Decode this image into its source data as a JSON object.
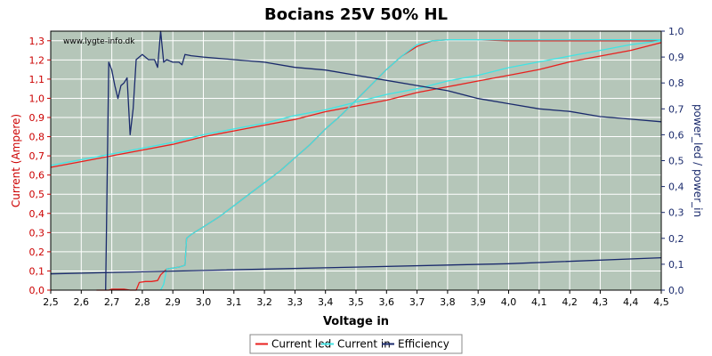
{
  "chart_data": {
    "type": "line",
    "title": "Bocians 25V 50% HL",
    "watermark": "www.lygte-info.dk",
    "xlabel": "Voltage in",
    "ylabel_left": "Current (Ampere)",
    "ylabel_right": "power_led / power_in",
    "xlim": [
      2.5,
      4.5
    ],
    "ylim_left": [
      0,
      1.35
    ],
    "ylim_right": [
      0,
      1.0
    ],
    "x_ticks": [
      "2,5",
      "2,6",
      "2,7",
      "2,8",
      "2,9",
      "3,0",
      "3,1",
      "3,2",
      "3,3",
      "3,4",
      "3,5",
      "3,6",
      "3,7",
      "3,8",
      "3,9",
      "4,0",
      "4,1",
      "4,2",
      "4,3",
      "4,4",
      "4,5"
    ],
    "y_left_ticks": [
      "0,0",
      "0,1",
      "0,2",
      "0,3",
      "0,4",
      "0,5",
      "0,6",
      "0,7",
      "0,8",
      "0,9",
      "1,0",
      "1,1",
      "1,2",
      "1,3"
    ],
    "y_right_ticks": [
      "0,0",
      "0,1",
      "0,2",
      "0,3",
      "0,4",
      "0,5",
      "0,6",
      "0,7",
      "0,8",
      "0,9",
      "1,0"
    ],
    "grid": true,
    "legend_position": "bottom",
    "colors": {
      "plot_bg": "#b5c6b9",
      "grid": "#ffffff",
      "current_led": "#e8201e",
      "current_in": "#40e4e4",
      "efficiency": "#1a2a6c",
      "left_axis": "#cc0000",
      "right_axis": "#1a2a6c"
    },
    "series": [
      {
        "name": "Current led",
        "axis": "left",
        "points": [
          [
            2.5,
            0.64
          ],
          [
            2.6,
            0.67
          ],
          [
            2.7,
            0.7
          ],
          [
            2.8,
            0.73
          ],
          [
            2.9,
            0.76
          ],
          [
            3.0,
            0.8
          ],
          [
            3.1,
            0.83
          ],
          [
            3.2,
            0.86
          ],
          [
            3.3,
            0.89
          ],
          [
            3.4,
            0.93
          ],
          [
            3.5,
            0.96
          ],
          [
            3.6,
            0.99
          ],
          [
            3.7,
            1.03
          ],
          [
            3.8,
            1.06
          ],
          [
            3.9,
            1.09
          ],
          [
            4.0,
            1.12
          ],
          [
            4.1,
            1.15
          ],
          [
            4.2,
            1.19
          ],
          [
            4.3,
            1.22
          ],
          [
            4.4,
            1.25
          ],
          [
            4.5,
            1.29
          ]
        ]
      },
      {
        "name": "Current led",
        "axis": "left",
        "points": [
          [
            2.65,
            0.0
          ],
          [
            2.69,
            0.0
          ],
          [
            2.7,
            0.005
          ],
          [
            2.72,
            0.005
          ],
          [
            2.74,
            0.005
          ],
          [
            2.76,
            0.0
          ],
          [
            2.78,
            0.0
          ],
          [
            2.79,
            0.04
          ],
          [
            2.81,
            0.045
          ],
          [
            2.83,
            0.045
          ],
          [
            2.85,
            0.05
          ],
          [
            2.86,
            0.08
          ],
          [
            2.88,
            0.11
          ],
          [
            2.9,
            0.115
          ],
          [
            2.92,
            0.12
          ],
          [
            2.94,
            0.13
          ],
          [
            2.945,
            0.27
          ],
          [
            2.96,
            0.29
          ],
          [
            3.0,
            0.33
          ],
          [
            3.05,
            0.38
          ],
          [
            3.1,
            0.44
          ],
          [
            3.15,
            0.5
          ],
          [
            3.2,
            0.56
          ],
          [
            3.25,
            0.62
          ],
          [
            3.3,
            0.69
          ],
          [
            3.35,
            0.76
          ],
          [
            3.4,
            0.84
          ],
          [
            3.45,
            0.91
          ],
          [
            3.5,
            0.99
          ],
          [
            3.55,
            1.07
          ],
          [
            3.6,
            1.15
          ],
          [
            3.65,
            1.22
          ],
          [
            3.7,
            1.27
          ],
          [
            3.75,
            1.3
          ],
          [
            3.8,
            1.305
          ],
          [
            3.9,
            1.305
          ],
          [
            4.0,
            1.3
          ],
          [
            4.1,
            1.3
          ],
          [
            4.2,
            1.3
          ],
          [
            4.3,
            1.3
          ],
          [
            4.4,
            1.3
          ],
          [
            4.5,
            1.3
          ]
        ]
      },
      {
        "name": "Current in",
        "axis": "left",
        "points": [
          [
            2.5,
            0.65
          ],
          [
            2.6,
            0.68
          ],
          [
            2.7,
            0.71
          ],
          [
            2.8,
            0.74
          ],
          [
            2.9,
            0.77
          ],
          [
            3.0,
            0.81
          ],
          [
            3.1,
            0.84
          ],
          [
            3.2,
            0.87
          ],
          [
            3.3,
            0.91
          ],
          [
            3.4,
            0.94
          ],
          [
            3.5,
            0.98
          ],
          [
            3.6,
            1.02
          ],
          [
            3.7,
            1.05
          ],
          [
            3.8,
            1.09
          ],
          [
            3.9,
            1.12
          ],
          [
            4.0,
            1.16
          ],
          [
            4.1,
            1.19
          ],
          [
            4.2,
            1.22
          ],
          [
            4.3,
            1.25
          ],
          [
            4.4,
            1.28
          ],
          [
            4.5,
            1.3
          ]
        ]
      },
      {
        "name": "Current in",
        "axis": "left",
        "points": [
          [
            2.86,
            0.0
          ],
          [
            2.87,
            0.03
          ],
          [
            2.88,
            0.11
          ],
          [
            2.9,
            0.115
          ],
          [
            2.92,
            0.12
          ],
          [
            2.94,
            0.13
          ],
          [
            2.945,
            0.27
          ],
          [
            2.96,
            0.29
          ],
          [
            3.0,
            0.33
          ],
          [
            3.05,
            0.38
          ],
          [
            3.1,
            0.44
          ],
          [
            3.15,
            0.5
          ],
          [
            3.2,
            0.56
          ],
          [
            3.25,
            0.62
          ],
          [
            3.3,
            0.69
          ],
          [
            3.35,
            0.76
          ],
          [
            3.4,
            0.84
          ],
          [
            3.45,
            0.91
          ],
          [
            3.5,
            0.99
          ],
          [
            3.55,
            1.07
          ],
          [
            3.6,
            1.15
          ],
          [
            3.65,
            1.22
          ],
          [
            3.7,
            1.28
          ],
          [
            3.75,
            1.3
          ],
          [
            3.8,
            1.305
          ],
          [
            3.9,
            1.305
          ],
          [
            4.0,
            1.305
          ],
          [
            4.1,
            1.305
          ],
          [
            4.2,
            1.305
          ],
          [
            4.3,
            1.305
          ],
          [
            4.4,
            1.305
          ],
          [
            4.5,
            1.305
          ]
        ]
      },
      {
        "name": "Efficiency",
        "axis": "right",
        "points": [
          [
            2.5,
            0.063
          ],
          [
            3.0,
            0.076
          ],
          [
            3.5,
            0.089
          ],
          [
            4.0,
            0.102
          ],
          [
            4.5,
            0.125
          ]
        ]
      },
      {
        "name": "Efficiency",
        "axis": "right",
        "points": [
          [
            2.68,
            0.0
          ],
          [
            2.69,
            0.88
          ],
          [
            2.7,
            0.85
          ],
          [
            2.71,
            0.79
          ],
          [
            2.72,
            0.74
          ],
          [
            2.73,
            0.79
          ],
          [
            2.74,
            0.8
          ],
          [
            2.75,
            0.82
          ],
          [
            2.76,
            0.6
          ],
          [
            2.77,
            0.7
          ],
          [
            2.78,
            0.89
          ],
          [
            2.8,
            0.91
          ],
          [
            2.82,
            0.89
          ],
          [
            2.84,
            0.89
          ],
          [
            2.85,
            0.86
          ],
          [
            2.86,
            1.0
          ],
          [
            2.87,
            0.88
          ],
          [
            2.88,
            0.89
          ],
          [
            2.9,
            0.88
          ],
          [
            2.92,
            0.88
          ],
          [
            2.93,
            0.87
          ],
          [
            2.94,
            0.91
          ],
          [
            2.96,
            0.905
          ],
          [
            3.0,
            0.9
          ],
          [
            3.1,
            0.89
          ],
          [
            3.2,
            0.88
          ],
          [
            3.3,
            0.86
          ],
          [
            3.4,
            0.85
          ],
          [
            3.5,
            0.83
          ],
          [
            3.6,
            0.81
          ],
          [
            3.7,
            0.79
          ],
          [
            3.8,
            0.77
          ],
          [
            3.9,
            0.74
          ],
          [
            4.0,
            0.72
          ],
          [
            4.1,
            0.7
          ],
          [
            4.2,
            0.69
          ],
          [
            4.3,
            0.67
          ],
          [
            4.4,
            0.66
          ],
          [
            4.5,
            0.65
          ]
        ]
      }
    ],
    "legend": [
      {
        "label": "Current led",
        "color": "#e8201e"
      },
      {
        "label": "Current in",
        "color": "#40e4e4"
      },
      {
        "label": "Efficiency",
        "color": "#1a2a6c"
      }
    ]
  }
}
